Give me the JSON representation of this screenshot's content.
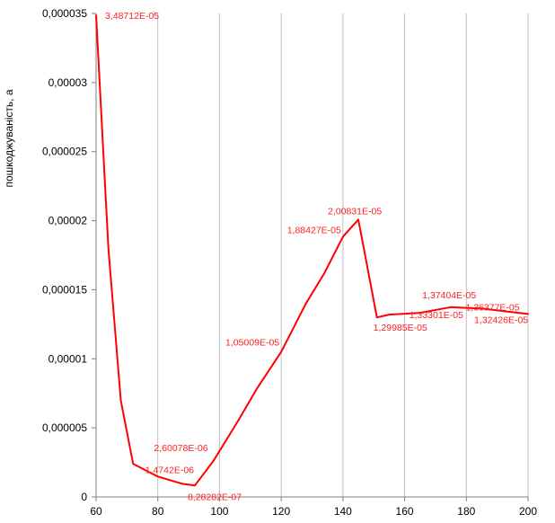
{
  "chart_data": {
    "type": "line",
    "title": "",
    "xlabel": "",
    "ylabel": "пошкоджуваність, а",
    "xlim": [
      60,
      200
    ],
    "ylim": [
      0,
      3.5e-05
    ],
    "x_ticks": [
      60,
      80,
      100,
      120,
      140,
      160,
      180,
      200
    ],
    "x_tick_labels": [
      "60",
      "80",
      "100",
      "120",
      "140",
      "160",
      "180",
      "200"
    ],
    "y_ticks": [
      0,
      5e-06,
      1e-05,
      1.5e-05,
      2e-05,
      2.5e-05,
      3e-05,
      3.5e-05
    ],
    "y_tick_labels": [
      "0",
      "0,000005",
      "0,00001",
      "0,000015",
      "0,00002",
      "0,000025",
      "0,00003",
      "0,000035"
    ],
    "grid": "vertical",
    "legend": "none",
    "line_color": "#ff0000",
    "series": [
      {
        "x": [
          60,
          64,
          68,
          72,
          80,
          88,
          92,
          98,
          106,
          112,
          120,
          128,
          134,
          140,
          145,
          151,
          155,
          165,
          175,
          185,
          200
        ],
        "y": [
          3.48712e-05,
          1.8e-05,
          7e-06,
          2.4e-06,
          1.4742e-06,
          9.5e-07,
          8.28282e-07,
          2.6e-06,
          5.5e-06,
          7.8e-06,
          1.05009e-05,
          1.4e-05,
          1.62e-05,
          1.88427e-05,
          2.00831e-05,
          1.29985e-05,
          1.32e-05,
          1.33301e-05,
          1.37404e-05,
          1.36377e-05,
          1.32426e-05
        ]
      }
    ],
    "data_labels": [
      {
        "x": 60,
        "y": 3.48712e-05,
        "text": "3,48712E-05"
      },
      {
        "x": 80,
        "y": 1.4742e-06,
        "text": "1,4742E-06"
      },
      {
        "x": 92,
        "y": 8.28282e-07,
        "text": "8,28282E-07"
      },
      {
        "x": 98,
        "y": 2.6e-06,
        "text": "2,60078E-06"
      },
      {
        "x": 120,
        "y": 1.05009e-05,
        "text": "1,05009E-05"
      },
      {
        "x": 140,
        "y": 1.88427e-05,
        "text": "1,88427E-05"
      },
      {
        "x": 145,
        "y": 2.00831e-05,
        "text": "2,00831E-05"
      },
      {
        "x": 151,
        "y": 1.29985e-05,
        "text": "1,29985E-05"
      },
      {
        "x": 165,
        "y": 1.33301e-05,
        "text": "1,33301E-05"
      },
      {
        "x": 175,
        "y": 1.37404e-05,
        "text": "1,37404E-05"
      },
      {
        "x": 185,
        "y": 1.36377e-05,
        "text": "1,36377E-05"
      },
      {
        "x": 200,
        "y": 1.32426e-05,
        "text": "1,32426E-05"
      }
    ]
  }
}
